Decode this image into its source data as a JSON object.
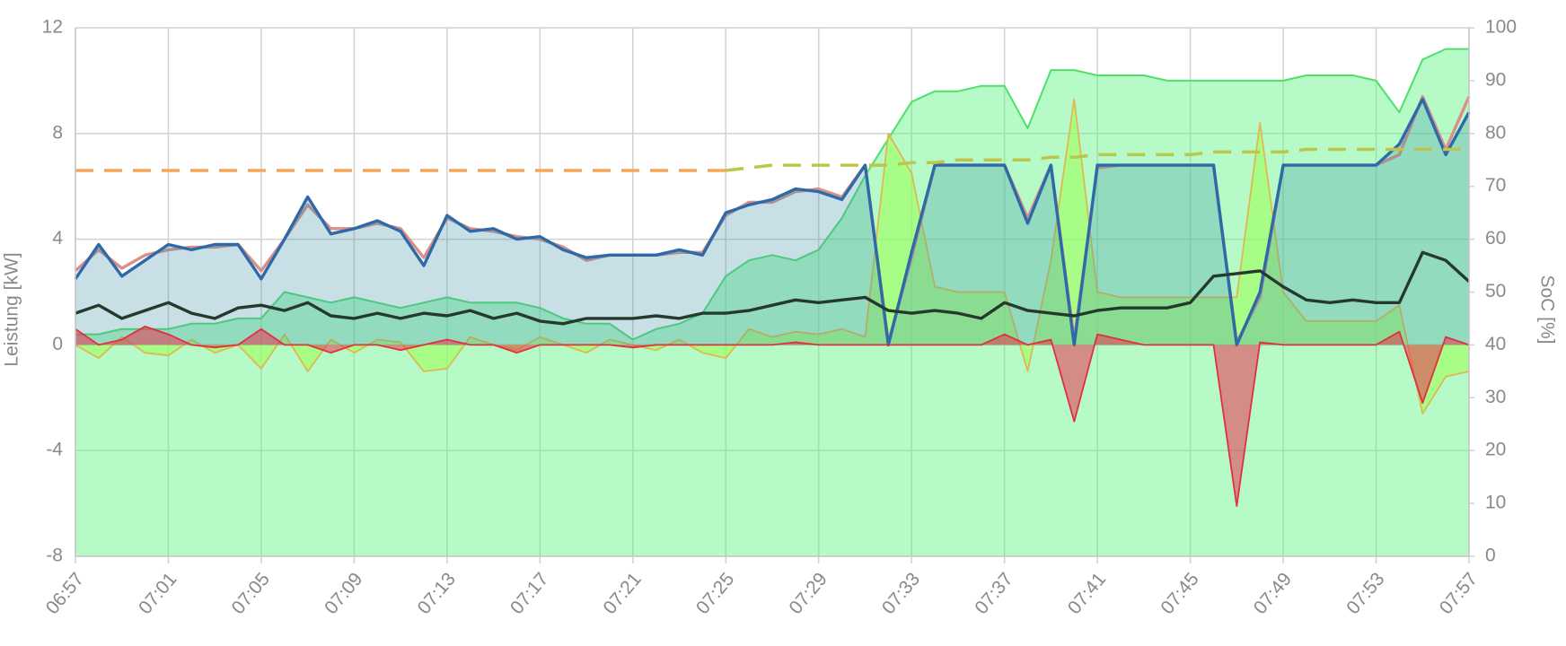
{
  "chart_data": {
    "type": "line",
    "x_label": "",
    "y_label": "Leistung [kW]",
    "y2_label": "SoC [%]",
    "x": [
      "06:57",
      "06:58",
      "06:59",
      "07:00",
      "07:01",
      "07:02",
      "07:03",
      "07:04",
      "07:05",
      "07:06",
      "07:07",
      "07:08",
      "07:09",
      "07:10",
      "07:11",
      "07:12",
      "07:13",
      "07:14",
      "07:15",
      "07:16",
      "07:17",
      "07:18",
      "07:19",
      "07:20",
      "07:21",
      "07:22",
      "07:23",
      "07:24",
      "07:25",
      "07:26",
      "07:27",
      "07:28",
      "07:29",
      "07:30",
      "07:31",
      "07:32",
      "07:33",
      "07:34",
      "07:35",
      "07:36",
      "07:37",
      "07:38",
      "07:39",
      "07:40",
      "07:41",
      "07:42",
      "07:43",
      "07:44",
      "07:45",
      "07:46",
      "07:47",
      "07:48",
      "07:49",
      "07:50",
      "07:51",
      "07:52",
      "07:53",
      "07:54",
      "07:55",
      "07:56",
      "07:57"
    ],
    "xlim": [
      "06:57",
      "07:57"
    ],
    "xticks": [
      "06:57",
      "07:01",
      "07:05",
      "07:09",
      "07:13",
      "07:17",
      "07:21",
      "07:25",
      "07:29",
      "07:33",
      "07:37",
      "07:41",
      "07:45",
      "07:49",
      "07:53",
      "07:57"
    ],
    "ylim": [
      -8,
      12
    ],
    "yticks": [
      -8,
      -4,
      0,
      4,
      8,
      12
    ],
    "y2lim": [
      0,
      100
    ],
    "y2ticks": [
      0,
      10,
      20,
      30,
      40,
      50,
      60,
      70,
      80,
      90,
      100
    ],
    "grid": true,
    "series": [
      {
        "axis": "y2",
        "color": "#4ee06a",
        "fill": "rgba(90,245,130,0.45)",
        "values": [
          42,
          42,
          43,
          43,
          43,
          44,
          44,
          45,
          45,
          50,
          49,
          48,
          49,
          48,
          47,
          48,
          49,
          48,
          48,
          48,
          47,
          45,
          44,
          44,
          41,
          43,
          44,
          46,
          53,
          56,
          57,
          56,
          58,
          64,
          72,
          79,
          86,
          88,
          88,
          89,
          89,
          81,
          92,
          92,
          91,
          91,
          91,
          90,
          90,
          90,
          90,
          90,
          90,
          91,
          91,
          91,
          90,
          84,
          94,
          96,
          96
        ]
      },
      {
        "color": "#e0b850",
        "fill": "rgba(160,255,90,0.6)",
        "values": [
          0,
          -0.5,
          0.3,
          -0.3,
          -0.4,
          0.2,
          -0.3,
          0,
          -0.9,
          0.4,
          -1.0,
          0.2,
          -0.3,
          0.2,
          0.1,
          -1.0,
          -0.9,
          0.3,
          0,
          -0.2,
          0.3,
          0,
          -0.3,
          0.2,
          0,
          -0.2,
          0.2,
          -0.3,
          -0.5,
          0.6,
          0.3,
          0.5,
          0.4,
          0.6,
          0.3,
          8.0,
          6.5,
          2.2,
          2.0,
          2.0,
          2.0,
          -1.0,
          3.2,
          9.3,
          2.0,
          1.8,
          1.8,
          1.8,
          1.8,
          1.8,
          1.8,
          8.4,
          2.0,
          0.9,
          0.9,
          0.9,
          0.9,
          1.5,
          -2.6,
          -1.2,
          -1.0
        ]
      },
      {
        "color": "#d9908a",
        "values": [
          2.8,
          3.6,
          2.9,
          3.4,
          3.6,
          3.7,
          3.7,
          3.8,
          2.8,
          4.0,
          5.3,
          4.4,
          4.4,
          4.6,
          4.4,
          3.3,
          4.8,
          4.4,
          4.3,
          4.1,
          4.0,
          3.7,
          3.2,
          3.4,
          3.4,
          3.4,
          3.5,
          3.5,
          4.9,
          5.4,
          5.4,
          5.8,
          5.9,
          5.6,
          6.8,
          0.1,
          3.3,
          6.8,
          6.8,
          6.8,
          6.8,
          4.8,
          6.8,
          0.2,
          6.7,
          6.8,
          6.8,
          6.8,
          6.8,
          6.8,
          0.1,
          1.8,
          6.8,
          6.8,
          6.8,
          6.8,
          6.8,
          7.2,
          9.4,
          7.4,
          9.4
        ]
      },
      {
        "color": "#2f6aa8",
        "fill": "rgba(70,150,170,0.3)",
        "values": [
          2.5,
          3.8,
          2.6,
          3.2,
          3.8,
          3.6,
          3.8,
          3.8,
          2.5,
          4.0,
          5.6,
          4.2,
          4.4,
          4.7,
          4.3,
          3.0,
          4.9,
          4.3,
          4.4,
          4.0,
          4.1,
          3.6,
          3.3,
          3.4,
          3.4,
          3.4,
          3.6,
          3.4,
          5.0,
          5.3,
          5.5,
          5.9,
          5.8,
          5.5,
          6.8,
          0,
          3.5,
          6.8,
          6.8,
          6.8,
          6.8,
          4.6,
          6.8,
          0,
          6.8,
          6.8,
          6.8,
          6.8,
          6.8,
          6.8,
          0,
          2.0,
          6.8,
          6.8,
          6.8,
          6.8,
          6.8,
          7.6,
          9.3,
          7.2,
          8.8
        ]
      },
      {
        "color": "#253a2c",
        "values": [
          1.2,
          1.5,
          1.0,
          1.3,
          1.6,
          1.2,
          1.0,
          1.4,
          1.5,
          1.3,
          1.6,
          1.1,
          1.0,
          1.2,
          1.0,
          1.2,
          1.1,
          1.3,
          1.0,
          1.2,
          0.9,
          0.8,
          1.0,
          1.0,
          1.0,
          1.1,
          1.0,
          1.2,
          1.2,
          1.3,
          1.5,
          1.7,
          1.6,
          1.7,
          1.8,
          1.3,
          1.2,
          1.3,
          1.2,
          1.0,
          1.6,
          1.3,
          1.2,
          1.1,
          1.3,
          1.4,
          1.4,
          1.4,
          1.6,
          2.6,
          2.7,
          2.8,
          2.2,
          1.7,
          1.6,
          1.7,
          1.6,
          1.6,
          3.5,
          3.2,
          2.4
        ]
      },
      {
        "color": "#e0303e",
        "fill": "rgba(235,50,80,0.55)",
        "values": [
          0.6,
          0,
          0.2,
          0.7,
          0.4,
          0,
          -0.1,
          0,
          0.6,
          0,
          0,
          -0.3,
          0,
          0,
          -0.2,
          0,
          0.2,
          0,
          0,
          -0.3,
          0,
          0,
          0,
          0,
          -0.1,
          0,
          0,
          0,
          0,
          0,
          0,
          0.1,
          0,
          0,
          0,
          0,
          0,
          0,
          0,
          0,
          0.4,
          0,
          0.2,
          -2.9,
          0.4,
          0.2,
          0,
          0,
          0,
          0,
          -6.1,
          0.1,
          0,
          0,
          0,
          0,
          0,
          0.5,
          -2.2,
          0.3,
          0
        ]
      },
      {
        "color": "#f5a65b",
        "dash": true,
        "values": [
          6.6,
          6.6,
          6.6,
          6.6,
          6.6,
          6.6,
          6.6,
          6.6,
          6.6,
          6.6,
          6.6,
          6.6,
          6.6,
          6.6,
          6.6,
          6.6,
          6.6,
          6.6,
          6.6,
          6.6,
          6.6,
          6.6,
          6.6,
          6.6,
          6.6,
          6.6,
          6.6,
          6.6,
          6.6,
          null,
          null,
          null,
          null,
          null,
          null,
          null,
          null,
          null,
          null,
          null,
          null,
          null,
          null,
          null,
          null,
          null,
          null,
          null,
          null,
          null,
          null,
          null,
          null,
          null,
          null,
          null,
          null,
          null,
          null,
          null,
          null
        ]
      },
      {
        "color": "#bcc64c",
        "dash": true,
        "values": [
          null,
          null,
          null,
          null,
          null,
          null,
          null,
          null,
          null,
          null,
          null,
          null,
          null,
          null,
          null,
          null,
          null,
          null,
          null,
          null,
          null,
          null,
          null,
          null,
          null,
          null,
          null,
          null,
          6.6,
          6.7,
          6.8,
          6.8,
          6.8,
          6.8,
          6.8,
          6.8,
          6.9,
          6.9,
          7.0,
          7.0,
          7.0,
          7.0,
          7.1,
          7.1,
          7.2,
          7.2,
          7.2,
          7.2,
          7.2,
          7.3,
          7.3,
          7.3,
          7.3,
          7.4,
          7.4,
          7.4,
          7.4,
          7.4,
          7.4,
          7.4,
          7.4
        ]
      }
    ]
  }
}
